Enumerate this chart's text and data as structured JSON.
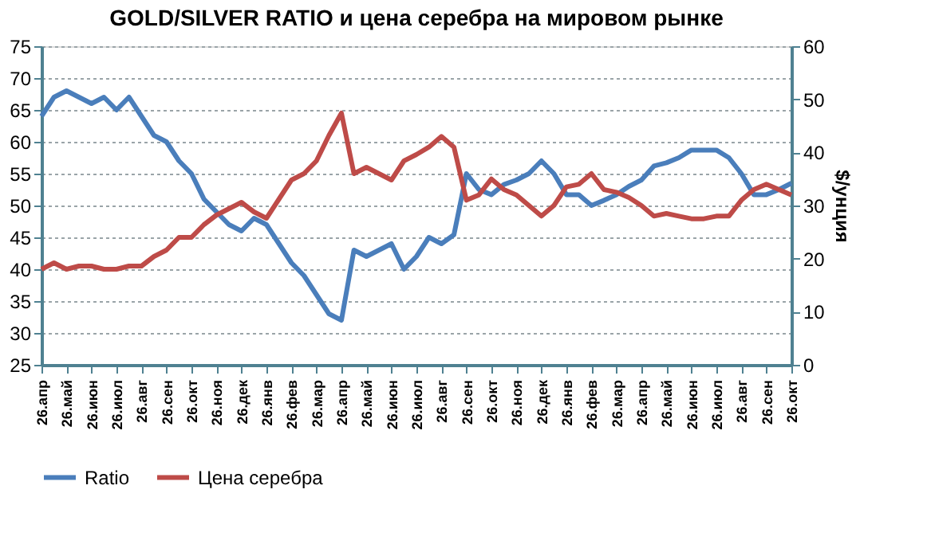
{
  "chart_data": {
    "type": "line",
    "title": "GOLD/SILVER RATIO и цена серебра на мировом рынке",
    "y2label": "$/унция",
    "categories": [
      "26.апр",
      null,
      "26.май",
      null,
      "26.июн",
      null,
      "26.июл",
      null,
      "26.авг",
      null,
      "26.сен",
      null,
      "26.окт",
      null,
      "26.ноя",
      null,
      "26.дек",
      null,
      "26.янв",
      null,
      "26.фев",
      null,
      "26.мар",
      null,
      "26.апр",
      null,
      "26.май",
      null,
      "26.июн",
      null,
      "26.июл",
      null,
      "26.авг",
      null,
      "26.сен",
      null,
      "26.окт",
      null,
      "26.ноя",
      null,
      "26.дек",
      null,
      "26.янв",
      null,
      "26.фев",
      null,
      "26.мар",
      null,
      "26.апр",
      null,
      "26.май",
      null,
      "26.июн",
      null,
      "26.июл",
      null,
      "26.авг",
      null,
      "26.сен",
      null,
      "26.окт"
    ],
    "series": [
      {
        "name": "Ratio",
        "color": "#4a7ebb",
        "values": [
          64,
          67,
          68,
          67,
          66,
          67,
          65,
          67,
          64,
          61,
          60,
          57,
          55,
          51,
          49,
          47,
          46,
          48,
          47,
          44,
          41,
          39,
          36,
          33,
          32,
          43,
          42,
          43,
          44,
          40,
          42,
          45,
          44,
          45.4,
          55,
          52.5,
          51.7,
          53.3,
          54,
          55,
          57,
          55,
          51.7,
          51.7,
          50,
          50.8,
          51.7,
          53,
          54,
          56.2,
          56.7,
          57.5,
          58.7,
          58.7,
          58.7,
          57.5,
          55,
          51.7,
          51.7,
          52.5,
          53.5
        ]
      },
      {
        "name": "Цена серебра",
        "color": "#be4b48",
        "axis": "y2",
        "values": [
          18,
          19.2,
          18,
          18.6,
          18.6,
          18,
          18,
          18.6,
          18.6,
          20.4,
          21.6,
          24,
          24,
          26.4,
          28.2,
          29.4,
          30.6,
          28.8,
          27.6,
          31.2,
          34.8,
          36,
          38.4,
          43.2,
          47.4,
          36,
          37.2,
          36,
          34.8,
          38.4,
          39.6,
          41,
          43,
          41,
          31,
          32,
          35,
          33,
          32,
          30,
          28,
          30,
          33.5,
          34,
          36,
          33,
          32.5,
          31.5,
          30,
          28,
          28.5,
          28,
          27.5,
          27.5,
          28,
          28,
          31,
          33,
          34,
          33,
          32
        ]
      }
    ],
    "ylim": [
      25,
      75
    ],
    "yticks": [
      25,
      30,
      35,
      40,
      45,
      50,
      55,
      60,
      65,
      70,
      75
    ],
    "y2lim": [
      0,
      60
    ],
    "y2ticks": [
      0,
      10,
      20,
      30,
      40,
      50,
      60
    ],
    "grid": "y",
    "legend": "bottom",
    "marker": "none",
    "line_style": "solid"
  }
}
